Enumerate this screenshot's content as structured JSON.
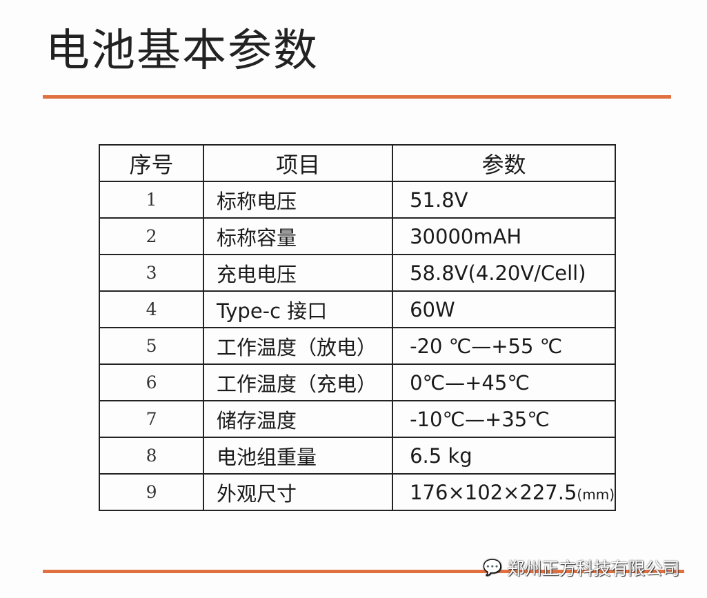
{
  "title": "电池基本参数",
  "colors": {
    "accent": "#e07040"
  },
  "table": {
    "headers": [
      "序号",
      "项目",
      "参数"
    ],
    "rows": [
      {
        "no": "1",
        "item": "标称电压",
        "value": "51.8V",
        "unit": ""
      },
      {
        "no": "2",
        "item": "标称容量",
        "value": "30000mAH",
        "unit": ""
      },
      {
        "no": "3",
        "item": "充电电压",
        "value": "58.8V(4.20V/Cell)",
        "unit": ""
      },
      {
        "no": "4",
        "item": "Type-c 接口",
        "value": "60W",
        "unit": ""
      },
      {
        "no": "5",
        "item": "工作温度（放电）",
        "value": "-20 ℃—+55 ℃",
        "unit": ""
      },
      {
        "no": "6",
        "item": "工作温度（充电）",
        "value": "0℃—+45℃",
        "unit": ""
      },
      {
        "no": "7",
        "item": "储存温度",
        "value": "-10℃—+35℃",
        "unit": ""
      },
      {
        "no": "8",
        "item": "电池组重量",
        "value": "6.5 kg",
        "unit": ""
      },
      {
        "no": "9",
        "item": "外观尺寸",
        "value": "176×102×227.5",
        "unit": "(mm)"
      }
    ]
  },
  "watermark": {
    "icon": "wechat-icon",
    "text": "郑州正方科技有限公司"
  }
}
